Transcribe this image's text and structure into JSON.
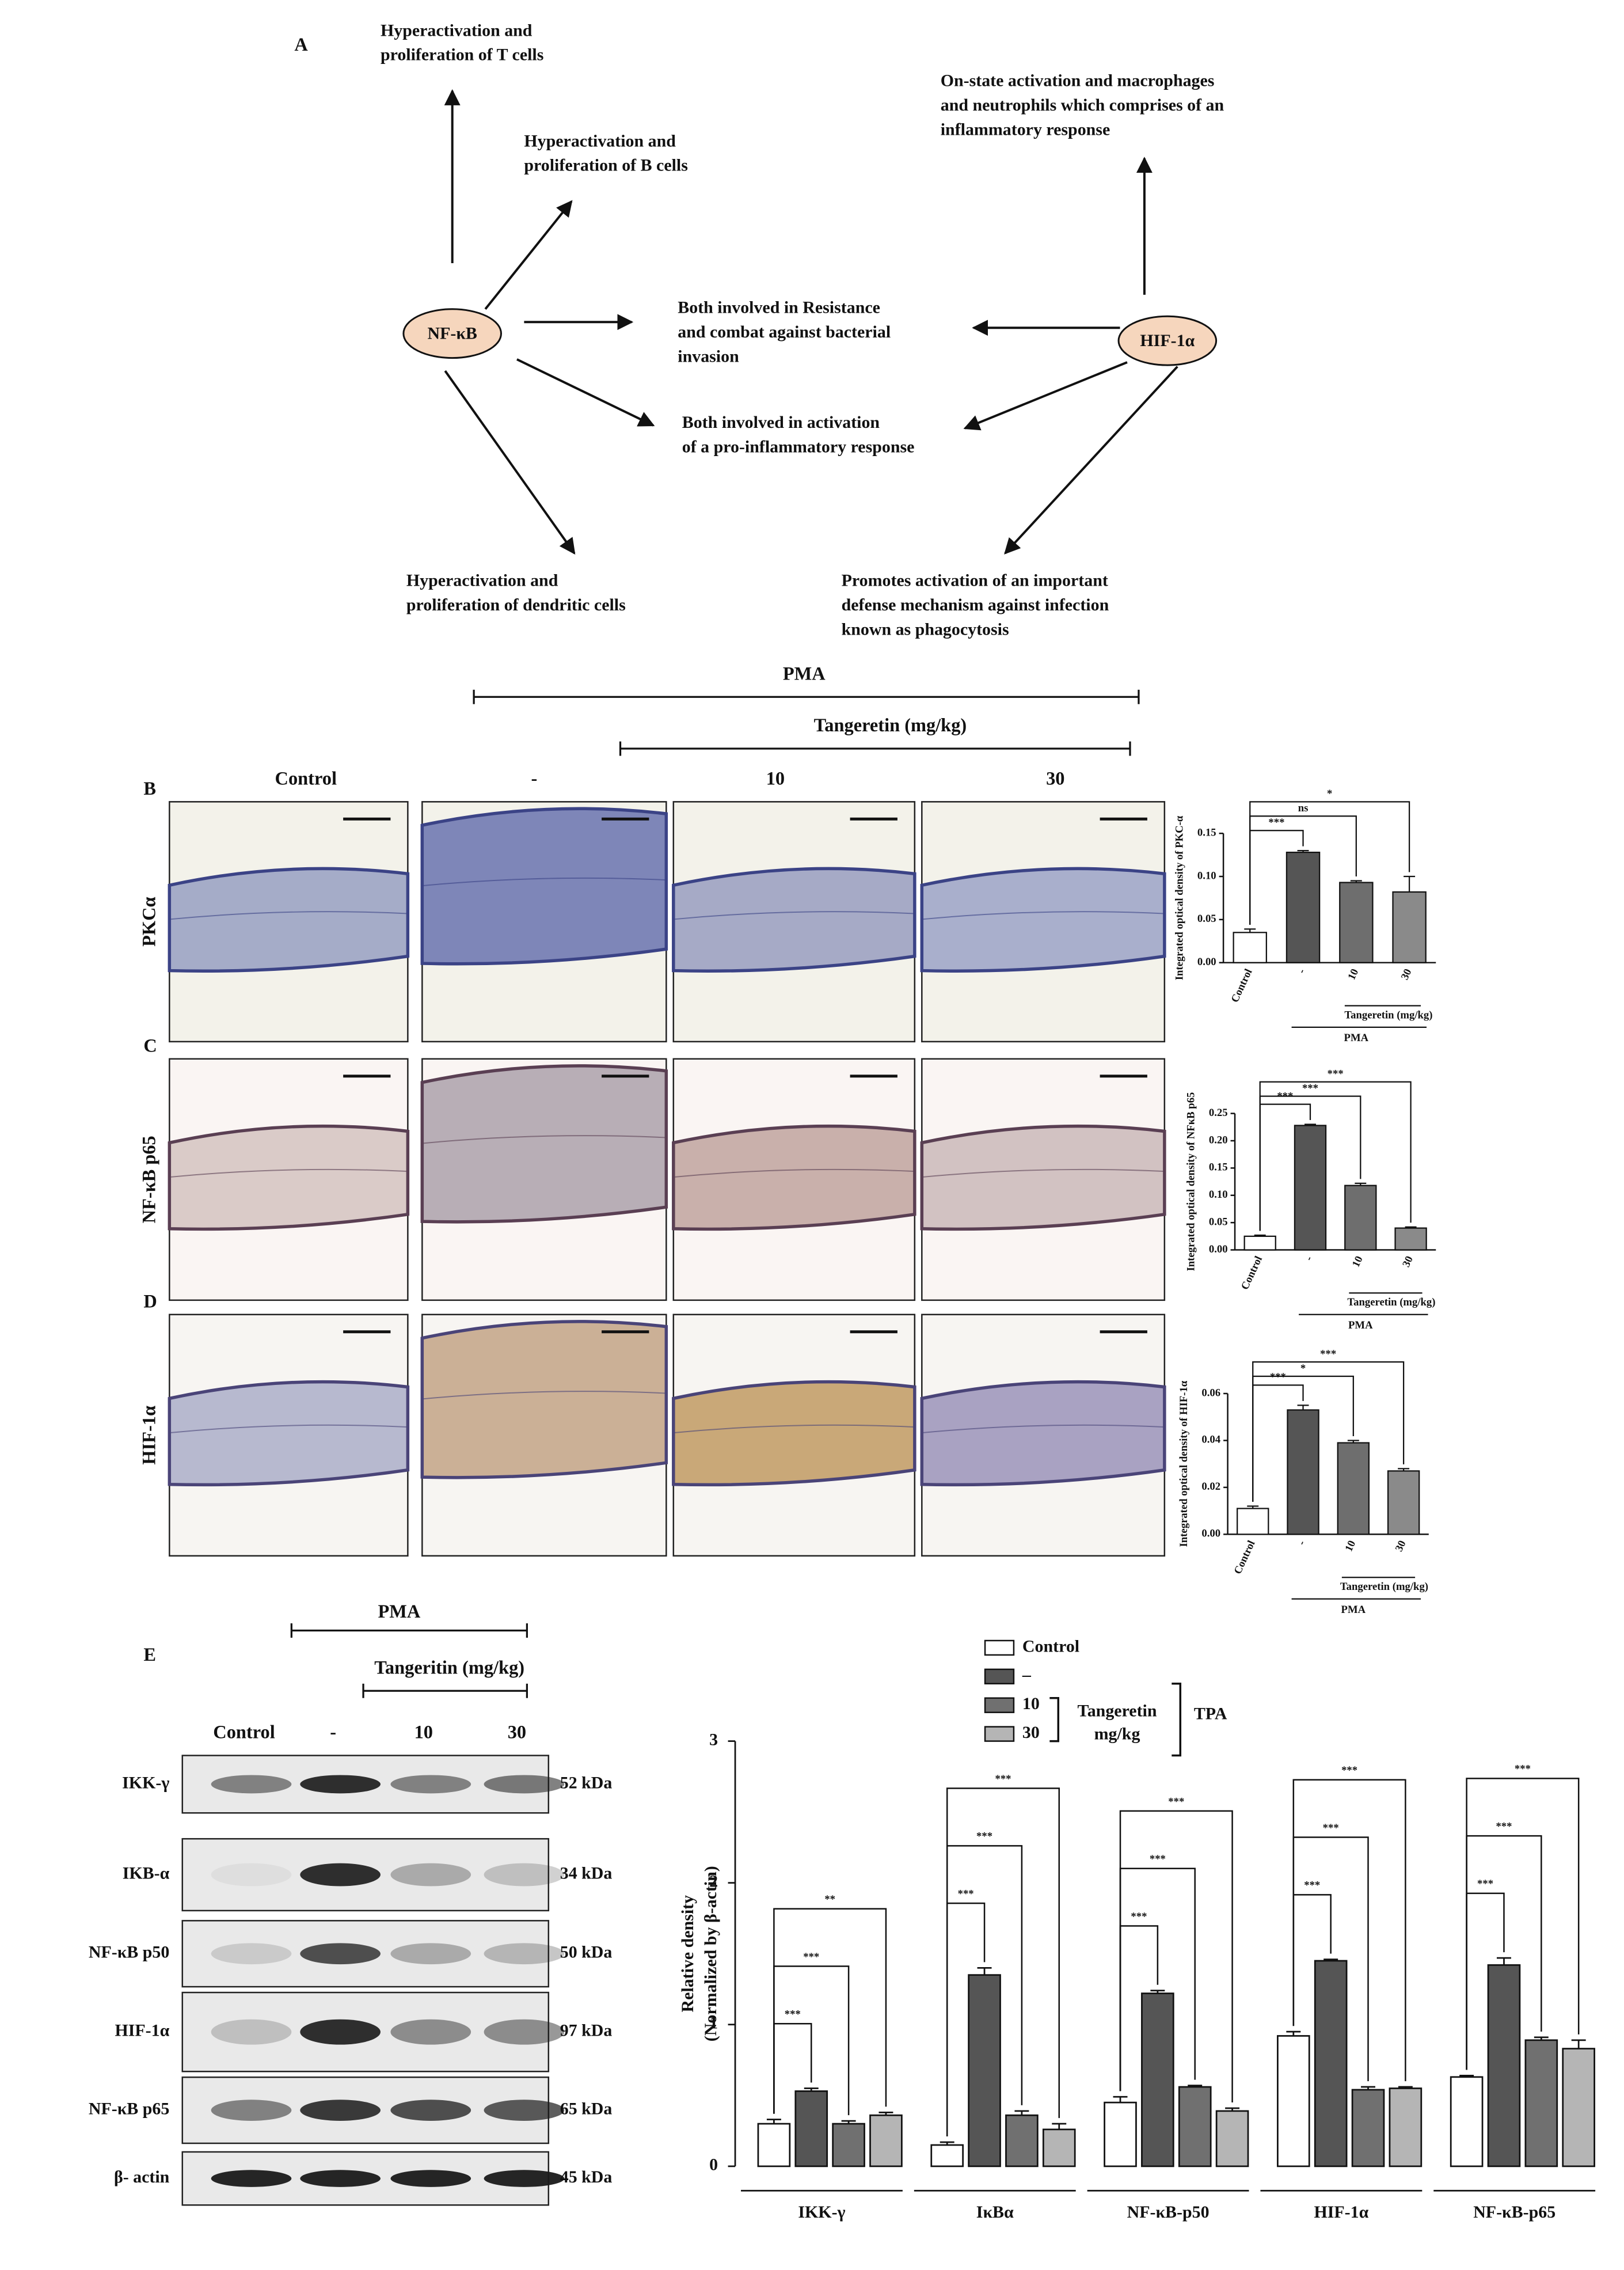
{
  "diagram": {
    "label": "A",
    "nodes": [
      {
        "label": "NF-κB"
      },
      {
        "label": "HIF-1α"
      }
    ],
    "notes": [
      {
        "lines": [
          "Hyperactivation and",
          "proliferation  of T cells"
        ]
      },
      {
        "lines": [
          "Hyperactivation and",
          "proliferation  of B cells"
        ]
      },
      {
        "lines": [
          "On-state activation and macrophages",
          " and neutrophils which comprises of an",
          "inflammatory  response"
        ]
      },
      {
        "lines": [
          "Both involved in Resistance",
          "and combat  against bacterial",
          "invasion"
        ]
      },
      {
        "lines": [
          "Both involved  in activation",
          "of a pro-inflammatory  response"
        ]
      },
      {
        "lines": [
          "Hyperactivation  and",
          "proliferation  of dendritic  cells"
        ]
      },
      {
        "lines": [
          "Promotes activation of an important",
          "defense mechanism against infection",
          "known  as phagocytosis"
        ]
      }
    ]
  },
  "histology": {
    "pma": "PMA",
    "treatment": "Tangeretin (mg/kg)",
    "columns": [
      "Control",
      "-",
      "10",
      "30"
    ],
    "rows": [
      {
        "panel": "B",
        "marker": "PKCα"
      },
      {
        "panel": "C",
        "marker": "NF-κB p65"
      },
      {
        "panel": "D",
        "marker": "HIF-1α"
      }
    ]
  },
  "blot": {
    "panel": "E",
    "pma": "PMA",
    "treatment": "Tangeritin (mg/kg)",
    "lanes": [
      "Control",
      "-",
      "10",
      "30"
    ],
    "rows": [
      {
        "name": "IKK-γ",
        "size": "52 kDa"
      },
      {
        "name": "IKB-α",
        "size": "34 kDa"
      },
      {
        "name": "NF-κB p50",
        "size": "50 kDa"
      },
      {
        "name": "HIF-1α",
        "size": "97 kDa"
      },
      {
        "name": "NF-κB p65",
        "size": "65 kDa"
      },
      {
        "name": "β- actin",
        "size": "45 kDa"
      }
    ]
  },
  "chart_data": [
    {
      "type": "bar",
      "ylabel": "Integrated optical density of PKC-α",
      "categories": [
        "Control",
        "-",
        "10",
        "30"
      ],
      "values": [
        0.035,
        0.128,
        0.093,
        0.082
      ],
      "errors": [
        0.004,
        0.002,
        0.002,
        0.018
      ],
      "colors": [
        "#ffffff",
        "#555555",
        "#6e6e6e",
        "#8a8a8a"
      ],
      "ylim": [
        0,
        0.15
      ],
      "yticks": [
        {
          "value": 0,
          "label": "0.00"
        },
        {
          "value": 0.05,
          "label": "0.05"
        },
        {
          "value": 0.1,
          "label": "0.10"
        },
        {
          "value": 0.15,
          "label": "0.15"
        }
      ],
      "significance": [
        "***",
        "ns",
        "*"
      ],
      "treatment": "Tangeretin (mg/kg)",
      "pma": "PMA"
    },
    {
      "type": "bar",
      "ylabel": "Integrated optical density of NFκB p65",
      "categories": [
        "Control",
        "-",
        "10",
        "30"
      ],
      "values": [
        0.025,
        0.228,
        0.118,
        0.04
      ],
      "errors": [
        0.002,
        0.002,
        0.004,
        0.002
      ],
      "colors": [
        "#ffffff",
        "#555555",
        "#6e6e6e",
        "#8a8a8a"
      ],
      "ylim": [
        0,
        0.25
      ],
      "yticks": [
        {
          "value": 0,
          "label": "0.00"
        },
        {
          "value": 0.05,
          "label": "0.05"
        },
        {
          "value": 0.1,
          "label": "0.10"
        },
        {
          "value": 0.15,
          "label": "0.15"
        },
        {
          "value": 0.2,
          "label": "0.20"
        },
        {
          "value": 0.25,
          "label": "0.25"
        }
      ],
      "significance": [
        "***",
        "***",
        "***"
      ],
      "treatment": "Tangeretin (mg/kg)",
      "pma": "PMA"
    },
    {
      "type": "bar",
      "ylabel": "Integrated optical density of HIF-1α",
      "categories": [
        "Control",
        "-",
        "10",
        "30"
      ],
      "values": [
        0.011,
        0.053,
        0.039,
        0.027
      ],
      "errors": [
        0.001,
        0.002,
        0.001,
        0.001
      ],
      "colors": [
        "#ffffff",
        "#555555",
        "#6e6e6e",
        "#8a8a8a"
      ],
      "ylim": [
        0,
        0.06
      ],
      "yticks": [
        {
          "value": 0,
          "label": "0.00"
        },
        {
          "value": 0.02,
          "label": "0.02"
        },
        {
          "value": 0.04,
          "label": "0.04"
        },
        {
          "value": 0.06,
          "label": "0.06"
        }
      ],
      "significance": [
        "***",
        "*",
        "***"
      ],
      "treatment": "Tangeretin (mg/kg)",
      "pma": "PMA"
    },
    {
      "type": "grouped_bar",
      "ylabel": [
        "Relative density",
        "(Normalized by β-actin)"
      ],
      "categories": [
        "IKK-γ",
        "IκBα",
        "NF-κB-p50",
        "HIF-1α",
        "NF-κB-p65"
      ],
      "series": [
        {
          "name": "Control",
          "color": "#ffffff",
          "values": [
            0.3,
            0.15,
            0.45,
            0.92,
            0.63
          ],
          "errors": [
            0.03,
            0.02,
            0.04,
            0.03,
            0.01
          ]
        },
        {
          "name": "–",
          "color": "#555555",
          "values": [
            0.53,
            1.35,
            1.22,
            1.45,
            1.42
          ],
          "errors": [
            0.02,
            0.05,
            0.02,
            0.01,
            0.05
          ]
        },
        {
          "name": "10",
          "color": "#707070",
          "values": [
            0.3,
            0.36,
            0.56,
            0.54,
            0.89
          ],
          "errors": [
            0.02,
            0.03,
            0.01,
            0.02,
            0.02
          ]
        },
        {
          "name": "30",
          "color": "#b5b5b5",
          "values": [
            0.36,
            0.26,
            0.39,
            0.55,
            0.83
          ],
          "errors": [
            0.02,
            0.04,
            0.02,
            0.01,
            0.06
          ]
        }
      ],
      "ylim": [
        0,
        3
      ],
      "yticks": [
        0,
        1,
        2,
        3
      ],
      "significance": [
        [
          "***",
          "***",
          "**"
        ],
        [
          "***",
          "***",
          "***"
        ],
        [
          "***",
          "***",
          "***"
        ],
        [
          "***",
          "***",
          "***"
        ],
        [
          "***",
          "***",
          "***"
        ]
      ],
      "treatment": [
        "Tangeretin",
        "mg/kg"
      ],
      "pma": "TPA"
    }
  ]
}
